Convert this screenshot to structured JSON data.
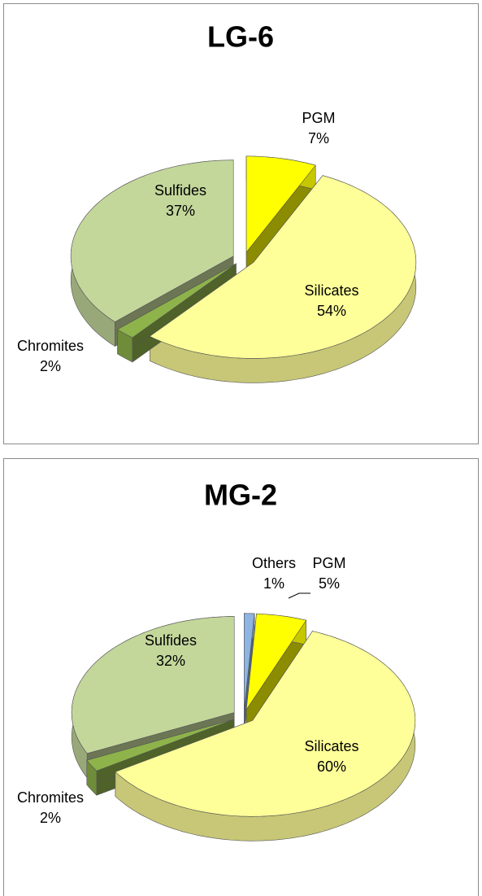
{
  "chart_data": [
    {
      "type": "pie",
      "title": "LG-6",
      "categories": [
        "PGM",
        "Silicates",
        "Chromites",
        "Sulfides"
      ],
      "values": [
        7,
        54,
        2,
        37
      ],
      "value_labels": [
        "7%",
        "54%",
        "2%",
        "37%"
      ],
      "colors": [
        "#ffff00",
        "#ffff99",
        "#8db34a",
        "#c4d79b"
      ]
    },
    {
      "type": "pie",
      "title": "MG-2",
      "categories": [
        "Others",
        "PGM",
        "Silicates",
        "Chromites",
        "Sulfides"
      ],
      "values": [
        1,
        5,
        60,
        2,
        32
      ],
      "value_labels": [
        "1%",
        "5%",
        "60%",
        "2%",
        "32%"
      ],
      "colors": [
        "#8db4e2",
        "#ffff00",
        "#ffff99",
        "#8db34a",
        "#c4d79b"
      ]
    }
  ]
}
